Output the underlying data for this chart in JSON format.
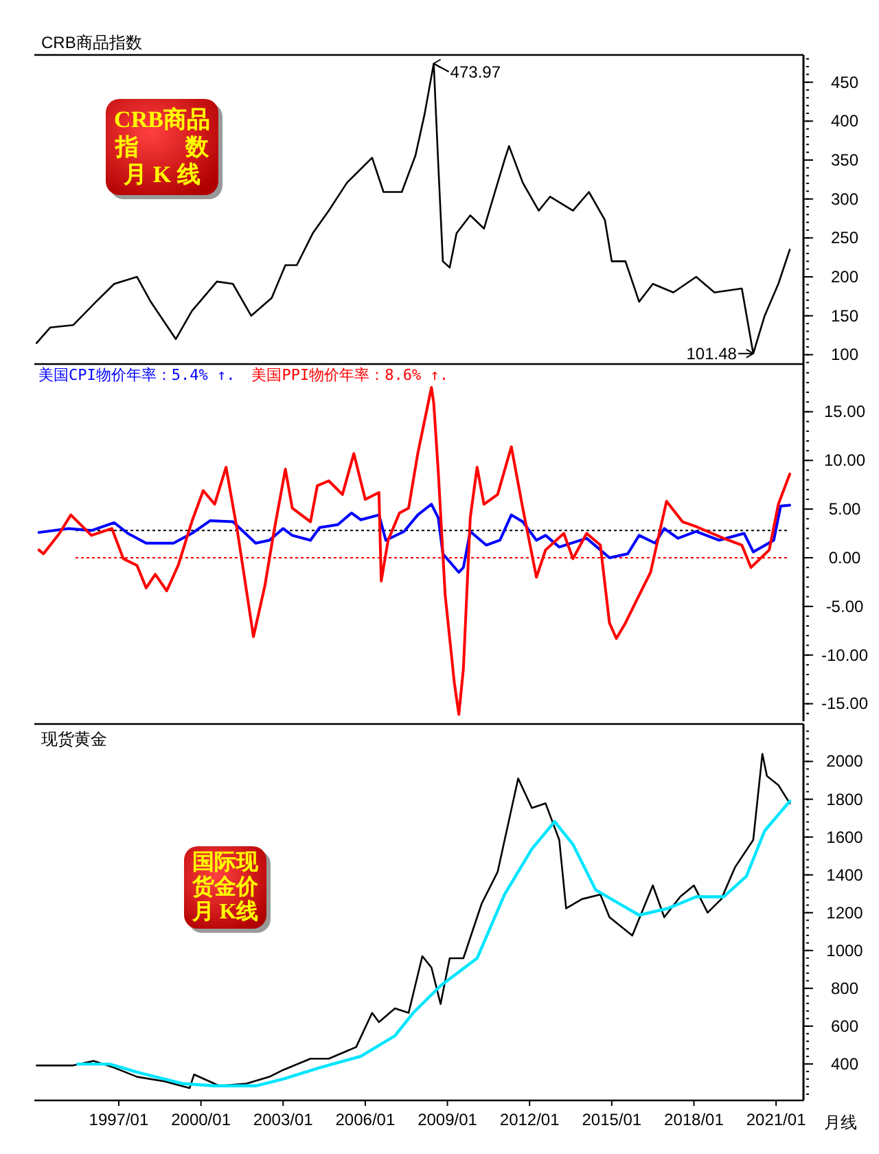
{
  "chart_data": [
    {
      "type": "line",
      "title": "CRB商品指数",
      "xlim": [
        "1993-12",
        "2022-01"
      ],
      "ylim": [
        88,
        485
      ],
      "yticks": [
        100,
        150,
        200,
        250,
        300,
        350,
        400,
        450
      ],
      "tick_labels": "y",
      "annotations": [
        "CRB商品",
        "指　　数",
        "月 K 线",
        {
          "text": "473.97",
          "x": "2008-07",
          "y": 473.97
        },
        {
          "text": "101.48",
          "x": "2020-03",
          "y": 101.48
        }
      ],
      "series": [
        {
          "color": "#000000",
          "x": [
            "1994-01",
            "1994-07",
            "1995-05",
            "1996-03",
            "1996-11",
            "1997-09",
            "1998-03",
            "1999-02",
            "1999-09",
            "2000-08",
            "2001-03",
            "2001-11",
            "2002-08",
            "2003-02",
            "2003-07",
            "2004-02",
            "2004-09",
            "2005-05",
            "2006-04",
            "2006-09",
            "2007-05",
            "2007-11",
            "2008-03",
            "2008-07",
            "2008-09",
            "2008-11",
            "2009-02",
            "2009-05",
            "2009-11",
            "2010-05",
            "2011-02",
            "2011-04",
            "2011-10",
            "2012-05",
            "2012-10",
            "2013-08",
            "2014-03",
            "2014-10",
            "2015-01",
            "2015-07",
            "2016-01",
            "2016-07",
            "2017-04",
            "2018-02",
            "2018-10",
            "2019-10",
            "2020-03",
            "2020-08",
            "2021-02",
            "2021-07"
          ],
          "values": [
            115,
            135,
            138,
            168,
            191,
            200,
            168,
            120,
            156,
            194,
            191,
            150,
            173,
            215,
            215,
            256,
            285,
            321,
            353,
            309,
            309,
            356,
            409,
            473.97,
            344,
            220,
            212,
            256,
            279,
            262,
            350,
            368,
            321,
            285,
            303,
            285,
            309,
            273,
            220,
            220,
            168,
            191,
            180,
            200,
            180,
            185,
            101.48,
            150,
            191,
            235
          ]
        }
      ]
    },
    {
      "type": "line",
      "xlim": [
        "1993-12",
        "2022-01"
      ],
      "ylim": [
        -16.8,
        19.9
      ],
      "yticks": [
        {
          "value": -15,
          "label": "-15.00"
        },
        {
          "value": -10,
          "label": "-10.00"
        },
        {
          "value": -5,
          "label": "-5.00"
        },
        {
          "value": 0,
          "label": "0.00"
        },
        {
          "value": 5,
          "label": "5.00"
        },
        {
          "value": 10,
          "label": "10.00"
        },
        {
          "value": 15,
          "label": "15.00"
        }
      ],
      "tick_labels": "y",
      "legend": "top left",
      "ref_lines": [
        {
          "axis": "y",
          "value": 2.8,
          "color": "#000000",
          "line_style": "dotted"
        },
        {
          "axis": "y",
          "value": 0,
          "color": "#ff0000",
          "line_style": "dotted"
        }
      ],
      "series": [
        {
          "name": "美国CPI物价年率：5.4% ↑.",
          "color": "#0000ff",
          "x": [
            "1994-02",
            "1995-03",
            "1996-01",
            "1996-11",
            "1997-05",
            "1998-01",
            "1999-01",
            "1999-09",
            "2000-05",
            "2001-03",
            "2002-01",
            "2002-07",
            "2003-01",
            "2003-05",
            "2004-01",
            "2004-05",
            "2005-01",
            "2005-07",
            "2005-11",
            "2006-07",
            "2006-10",
            "2007-06",
            "2007-12",
            "2008-06",
            "2008-09",
            "2008-11",
            "2009-06",
            "2009-08",
            "2009-11",
            "2010-06",
            "2010-12",
            "2011-05",
            "2011-10",
            "2012-04",
            "2012-08",
            "2013-02",
            "2014-02",
            "2014-12",
            "2015-08",
            "2016-01",
            "2016-08",
            "2016-12",
            "2017-06",
            "2018-02",
            "2018-12",
            "2019-11",
            "2020-03",
            "2020-12",
            "2021-03",
            "2021-07"
          ],
          "values": [
            2.6,
            3.0,
            2.8,
            3.6,
            2.5,
            1.5,
            1.5,
            2.5,
            3.8,
            3.7,
            1.5,
            1.8,
            3.0,
            2.3,
            1.8,
            3.1,
            3.4,
            4.6,
            3.9,
            4.4,
            1.8,
            2.7,
            4.4,
            5.5,
            4.1,
            0.4,
            -1.5,
            -1.0,
            2.7,
            1.3,
            1.8,
            4.4,
            3.7,
            1.8,
            2.3,
            1.1,
            2.0,
            0.0,
            0.4,
            2.3,
            1.5,
            3.0,
            2.0,
            2.7,
            1.8,
            2.5,
            0.6,
            1.8,
            5.3,
            5.4
          ]
        },
        {
          "name": "美国PPI物价年率：8.6% ↑.",
          "color": "#ff0000",
          "x": [
            "1994-02",
            "1994-04",
            "1994-11",
            "1995-04",
            "1996-01",
            "1996-10",
            "1997-03",
            "1997-09",
            "1998-01",
            "1998-05",
            "1998-10",
            "1999-03",
            "1999-09",
            "2000-02",
            "2000-07",
            "2000-12",
            "2001-05",
            "2001-12",
            "2002-05",
            "2002-09",
            "2003-02",
            "2003-05",
            "2004-01",
            "2004-04",
            "2004-09",
            "2005-03",
            "2005-08",
            "2006-01",
            "2006-07",
            "2006-08",
            "2006-11",
            "2007-04",
            "2007-08",
            "2007-12",
            "2008-06",
            "2008-07",
            "2008-09",
            "2008-12",
            "2009-04",
            "2009-06",
            "2009-08",
            "2009-11",
            "2010-02",
            "2010-05",
            "2010-11",
            "2011-05",
            "2011-10",
            "2012-04",
            "2012-08",
            "2013-04",
            "2013-08",
            "2014-02",
            "2014-08",
            "2014-12",
            "2015-03",
            "2015-07",
            "2015-11",
            "2016-06",
            "2017-01",
            "2017-08",
            "2018-02",
            "2019-02",
            "2019-10",
            "2020-02",
            "2020-10",
            "2021-02",
            "2021-07"
          ],
          "values": [
            0.8,
            0.4,
            2.5,
            4.4,
            2.3,
            3.0,
            -0.1,
            -0.8,
            -3.1,
            -1.7,
            -3.4,
            -0.8,
            3.7,
            6.9,
            5.5,
            9.3,
            2.7,
            -8.1,
            -2.9,
            2.7,
            9.1,
            5.1,
            3.7,
            7.4,
            7.9,
            6.5,
            10.7,
            6.0,
            6.7,
            -2.4,
            1.8,
            4.6,
            5.1,
            10.7,
            17.5,
            15.9,
            8.8,
            -3.8,
            -12.8,
            -16.1,
            -11.4,
            4.1,
            9.3,
            5.5,
            6.5,
            11.4,
            5.1,
            -2.0,
            0.8,
            2.5,
            -0.1,
            2.5,
            1.3,
            -6.7,
            -8.3,
            -6.7,
            -4.8,
            -1.5,
            5.8,
            3.7,
            3.2,
            2.0,
            1.3,
            -1.0,
            0.8,
            5.5,
            8.6
          ]
        }
      ]
    },
    {
      "type": "line",
      "title": "现货黄金",
      "xlim": [
        "1993-12",
        "2022-01"
      ],
      "ylim": [
        207,
        2198
      ],
      "yticks": [
        400,
        600,
        800,
        1000,
        1200,
        1400,
        1600,
        1800,
        2000
      ],
      "xticks": [
        {
          "value": "1997-01",
          "label": "1997/01"
        },
        {
          "value": "2000-01",
          "label": "2000/01"
        },
        {
          "value": "2003-01",
          "label": "2003/01"
        },
        {
          "value": "2006-01",
          "label": "2006/01"
        },
        {
          "value": "2009-01",
          "label": "2009/01"
        },
        {
          "value": "2012-01",
          "label": "2012/01"
        },
        {
          "value": "2015-01",
          "label": "2015/01"
        },
        {
          "value": "2018-01",
          "label": "2018/01"
        },
        {
          "value": "2021-01",
          "label": "2021/01"
        }
      ],
      "annotations": [
        "国际现",
        "货金价",
        "月 K线",
        "月线"
      ],
      "series": [
        {
          "color": "#000000",
          "x": [
            "1994-01",
            "1995-05",
            "1996-02",
            "1996-11",
            "1997-09",
            "1998-09",
            "1999-08",
            "1999-10",
            "2000-09",
            "2001-09",
            "2002-07",
            "2003-01",
            "2004-01",
            "2004-09",
            "2005-09",
            "2006-04",
            "2006-07",
            "2007-02",
            "2007-08",
            "2008-02",
            "2008-06",
            "2008-10",
            "2009-02",
            "2009-08",
            "2010-04",
            "2010-11",
            "2011-08",
            "2012-02",
            "2012-08",
            "2013-02",
            "2013-05",
            "2013-12",
            "2014-08",
            "2014-12",
            "2015-10",
            "2016-07",
            "2016-12",
            "2017-07",
            "2018-01",
            "2018-07",
            "2019-01",
            "2019-07",
            "2020-03",
            "2020-07",
            "2020-09",
            "2021-02",
            "2021-07"
          ],
          "values": [
            392,
            392,
            416,
            380,
            332,
            308,
            272,
            344,
            284,
            296,
            332,
            368,
            428,
            428,
            489,
            670,
            621,
            694,
            670,
            970,
            910,
            717,
            959,
            959,
            1248,
            1416,
            1910,
            1754,
            1778,
            1585,
            1223,
            1272,
            1296,
            1176,
            1079,
            1344,
            1176,
            1284,
            1344,
            1200,
            1272,
            1440,
            1585,
            2040,
            1923,
            1875,
            1778
          ]
        },
        {
          "color": "#00e5ff",
          "x": [
            "1995-07",
            "1996-09",
            "1997-09",
            "1999-05",
            "2000-07",
            "2002-01",
            "2003-01",
            "2004-05",
            "2005-11",
            "2007-02",
            "2007-10",
            "2008-04",
            "2008-10",
            "2010-02",
            "2011-02",
            "2012-02",
            "2012-12",
            "2013-08",
            "2014-06",
            "2015-06",
            "2016-01",
            "2017-02",
            "2018-02",
            "2019-02",
            "2019-12",
            "2020-08",
            "2021-07"
          ],
          "values": [
            399,
            399,
            356,
            296,
            284,
            284,
            320,
            380,
            440,
            549,
            670,
            742,
            814,
            959,
            1296,
            1537,
            1682,
            1561,
            1320,
            1236,
            1187,
            1224,
            1284,
            1284,
            1393,
            1633,
            1790
          ]
        }
      ]
    }
  ]
}
